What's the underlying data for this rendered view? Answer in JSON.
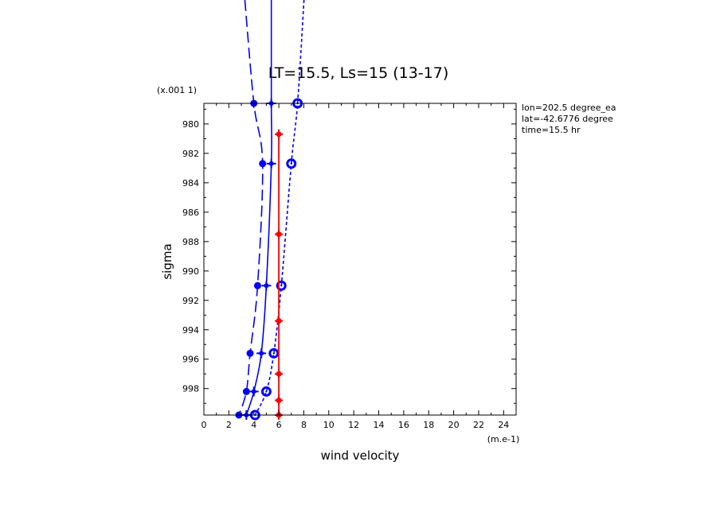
{
  "chart_data": {
    "type": "line",
    "title": "LT=15.5, Ls=15 (13-17)",
    "xlabel": "wind velocity",
    "ylabel": "sigma",
    "x_unit_label": "(m.e-1)",
    "y_unit_label": "(x.001 1)",
    "xlim": [
      0,
      25
    ],
    "ylim": [
      999.8,
      978.6
    ],
    "x_ticks": [
      "0",
      "2",
      "4",
      "6",
      "8",
      "10",
      "12",
      "14",
      "16",
      "18",
      "20",
      "22",
      "24"
    ],
    "y_ticks": [
      "980",
      "982",
      "984",
      "986",
      "988",
      "990",
      "992",
      "994",
      "996",
      "998"
    ],
    "info_lines": [
      "lon=202.5 degree_ea",
      "lat=-42.6776 degree",
      "time=15.5 hr"
    ],
    "grid": false,
    "series": [
      {
        "color": "#0000ff",
        "dash": "long-dash",
        "marker": "filled-circle",
        "points": [
          [
            4.0,
            978.6
          ],
          [
            4.7,
            982.7
          ],
          [
            4.3,
            991.0
          ],
          [
            3.7,
            995.6
          ],
          [
            3.4,
            998.2
          ],
          [
            2.8,
            999.8
          ]
        ]
      },
      {
        "color": "#0000ff",
        "dash": "solid",
        "marker": "plus",
        "points": [
          [
            5.4,
            978.6
          ],
          [
            5.4,
            982.7
          ],
          [
            5.0,
            991.0
          ],
          [
            4.6,
            995.6
          ],
          [
            4.0,
            998.2
          ],
          [
            3.4,
            999.8
          ]
        ]
      },
      {
        "color": "#0000ff",
        "dash": "short-dash",
        "marker": "ring",
        "points": [
          [
            7.5,
            978.6
          ],
          [
            7.0,
            982.7
          ],
          [
            6.2,
            991.0
          ],
          [
            5.6,
            995.6
          ],
          [
            5.0,
            998.2
          ],
          [
            4.1,
            999.8
          ]
        ]
      },
      {
        "color": "#ff0000",
        "dash": "solid",
        "marker": "plus-dot",
        "points": [
          [
            6.0,
            980.7
          ],
          [
            6.0,
            987.5
          ],
          [
            6.0,
            993.4
          ],
          [
            6.0,
            997.0
          ],
          [
            6.0,
            998.8
          ],
          [
            6.0,
            999.8
          ]
        ]
      }
    ]
  }
}
